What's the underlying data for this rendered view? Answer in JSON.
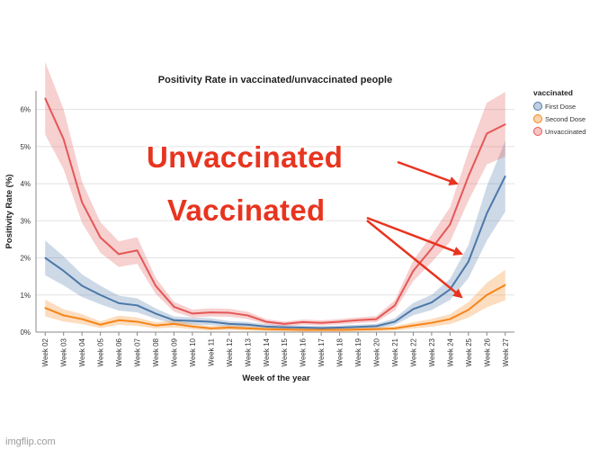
{
  "chart_data": {
    "type": "line",
    "title": "Positivity Rate in vaccinated/unvaccinated people",
    "xlabel": "Week of the year",
    "ylabel": "Positivity Rate (%)",
    "ylim": [
      0,
      6.5
    ],
    "yticks": [
      "0%",
      "1%",
      "2%",
      "3%",
      "4%",
      "5%",
      "6%"
    ],
    "categories": [
      "Week 02",
      "Week 03",
      "Week 04",
      "Week 05",
      "Week 06",
      "Week 07",
      "Week 08",
      "Week 09",
      "Week 10",
      "Week 11",
      "Week 12",
      "Week 13",
      "Week 14",
      "Week 15",
      "Week 16",
      "Week 17",
      "Week 18",
      "Week 19",
      "Week 20",
      "Week 21",
      "Week 22",
      "Week 23",
      "Week 24",
      "Week 25",
      "Week 26",
      "Week 27"
    ],
    "legend_title": "vaccinated",
    "legend_position": "top-right",
    "series": [
      {
        "name": "First Dose",
        "color": "#4c78a8",
        "values": [
          2.0,
          1.65,
          1.25,
          1.0,
          0.78,
          0.72,
          0.5,
          0.32,
          0.3,
          0.28,
          0.22,
          0.2,
          0.15,
          0.13,
          0.12,
          0.11,
          0.12,
          0.14,
          0.16,
          0.28,
          0.62,
          0.8,
          1.15,
          1.9,
          3.2,
          4.2
        ],
        "band": 0.22
      },
      {
        "name": "Second Dose",
        "color": "#f58518",
        "values": [
          0.65,
          0.45,
          0.35,
          0.2,
          0.32,
          0.28,
          0.18,
          0.22,
          0.15,
          0.1,
          0.12,
          0.1,
          0.08,
          0.07,
          0.06,
          0.06,
          0.06,
          0.07,
          0.08,
          0.1,
          0.18,
          0.25,
          0.35,
          0.6,
          1.0,
          1.27
        ],
        "band": 0.3
      },
      {
        "name": "Unvaccinated",
        "color": "#e45756",
        "values": [
          6.3,
          5.2,
          3.5,
          2.55,
          2.1,
          2.2,
          1.25,
          0.68,
          0.5,
          0.53,
          0.52,
          0.45,
          0.28,
          0.22,
          0.27,
          0.25,
          0.28,
          0.32,
          0.35,
          0.72,
          1.65,
          2.25,
          2.9,
          4.2,
          5.35,
          5.6
        ],
        "band": 0.15
      }
    ]
  },
  "annotations": {
    "unvaccinated": "Unvaccinated",
    "vaccinated": "Vaccinated"
  },
  "watermark": "imgflip.com",
  "annotation_color": "#e8341f"
}
